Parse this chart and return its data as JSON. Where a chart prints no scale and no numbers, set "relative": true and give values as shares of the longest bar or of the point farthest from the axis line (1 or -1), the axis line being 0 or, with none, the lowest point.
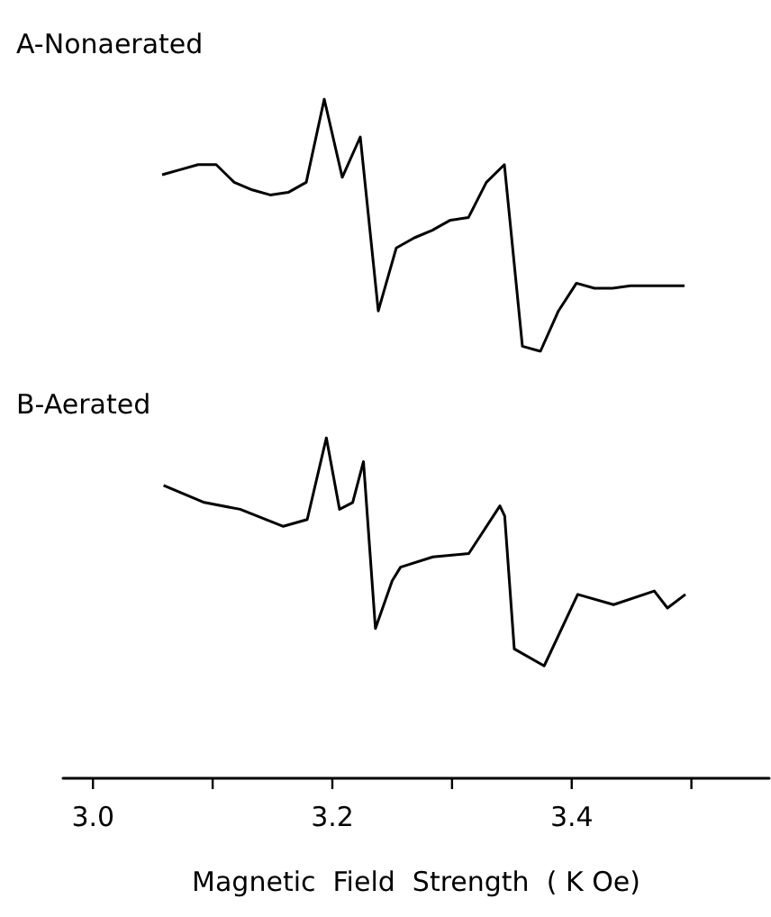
{
  "chart_data": [
    {
      "type": "line",
      "title": "A-Nonaerated",
      "relative": true,
      "categories": [
        null,
        null,
        null,
        null,
        null,
        null,
        null,
        null,
        null,
        null,
        null,
        null,
        null,
        null,
        null,
        null,
        null,
        null,
        null,
        null,
        null,
        null,
        null,
        null,
        null,
        null,
        null,
        null,
        null,
        null
      ],
      "marker": "none",
      "line_style": "solid",
      "series": [
        {
          "color": "#000000",
          "values": [
            0.7,
            0.72,
            0.74,
            0.74,
            0.67,
            0.64,
            0.62,
            0.63,
            0.67,
            1,
            0.69,
            0.85,
            0.16,
            0.41,
            0.45,
            0.48,
            0.52,
            0.53,
            0.67,
            0.74,
            0.02,
            0,
            0.16,
            0.27,
            0.25,
            0.25,
            0.26,
            0.26,
            0.26,
            0.26
          ]
        }
      ]
    },
    {
      "type": "line",
      "title": "B-Aerated",
      "xlabel": "Magnetic  Field  Strength  ( K Oe)",
      "relative": true,
      "xlim": [
        2.975,
        3.565
      ],
      "xticks": [
        {
          "value": 3.0,
          "label": "3.0"
        },
        {
          "value": 3.1,
          "label": null
        },
        3.2,
        {
          "value": 3.3,
          "label": null
        },
        3.4,
        {
          "value": 3.5,
          "label": null
        }
      ],
      "marker": "none",
      "line_style": "solid",
      "series": [
        {
          "color": "#000000",
          "x": [
            3.059,
            3.093,
            3.123,
            3.159,
            3.179,
            3.195,
            3.206,
            3.217,
            3.226,
            3.236,
            3.25,
            3.257,
            3.284,
            3.314,
            3.34,
            3.344,
            3.352,
            3.377,
            3.405,
            3.435,
            3.469,
            3.48,
            3.495
          ],
          "values": [
            0.86,
            0.81,
            0.79,
            0.74,
            0.76,
            1,
            0.79,
            0.81,
            0.93,
            0.44,
            0.58,
            0.62,
            0.65,
            0.66,
            0.8,
            0.77,
            0.38,
            0.33,
            0.54,
            0.51,
            0.55,
            0.5,
            0.54
          ]
        }
      ]
    }
  ]
}
